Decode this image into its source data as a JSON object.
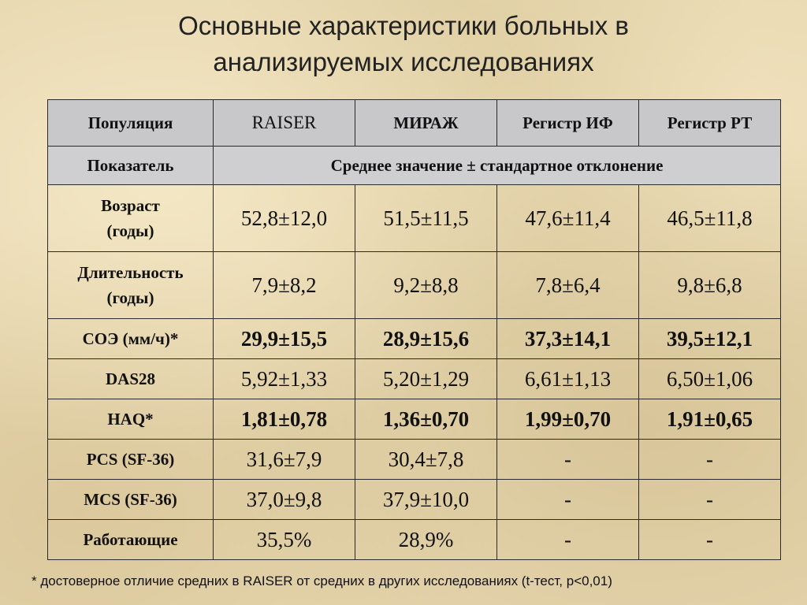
{
  "title": {
    "line1": "Основные характеристики больных в",
    "line2": "анализируемых исследованиях"
  },
  "table": {
    "headers": [
      "Популяция",
      "RAISER",
      "МИРАЖ",
      "Регистр ИФ",
      "Регистр РТ"
    ],
    "subheader": {
      "label": "Показатель",
      "span_text": "Среднее значение ± стандартное отклонение"
    },
    "rows": [
      {
        "label1": "Возраст",
        "label2": "(годы)",
        "values": [
          "52,8±12,0",
          "51,5±11,5",
          "47,6±11,4",
          "46,5±11,8"
        ]
      },
      {
        "label1": "Длительность",
        "label2": "(годы)",
        "values": [
          "7,9±8,2",
          "9,2±8,8",
          "7,8±6,4",
          "9,8±6,8"
        ]
      },
      {
        "label1": "СОЭ (мм/ч)*",
        "values": [
          "29,9±15,5",
          "28,9±15,6",
          "37,3±14,1",
          "39,5±12,1"
        ]
      },
      {
        "label1": "DAS28",
        "values": [
          "5,92±1,33",
          "5,20±1,29",
          "6,61±1,13",
          "6,50±1,06"
        ]
      },
      {
        "label1": "HAQ*",
        "values": [
          "1,81±0,78",
          "1,36±0,70",
          "1,99±0,70",
          "1,91±0,65"
        ]
      },
      {
        "label1": "PCS (SF-36)",
        "values": [
          "31,6±7,9",
          "30,4±7,8",
          "-",
          "-"
        ]
      },
      {
        "label1": "MCS (SF-36)",
        "values": [
          "37,0±9,8",
          "37,9±10,0",
          "-",
          "-"
        ]
      },
      {
        "label1": "Работающие",
        "values": [
          "35,5%",
          "28,9%",
          "-",
          "-"
        ]
      }
    ]
  },
  "footnote": "* достоверное отличие средних в RAISER от средних в других исследованиях (t-тест, p<0,01)"
}
